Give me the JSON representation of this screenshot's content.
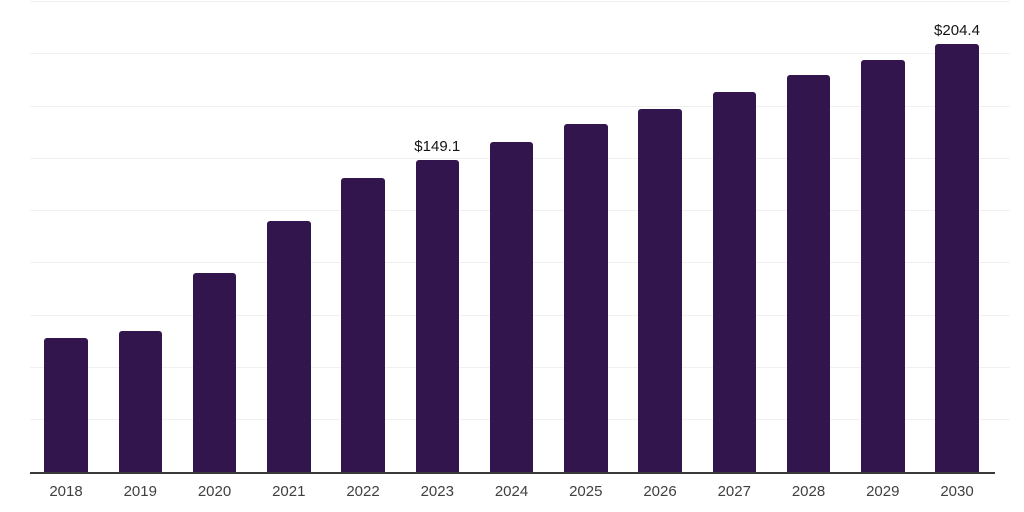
{
  "chart_data": {
    "type": "bar",
    "title": "",
    "xlabel": "",
    "ylabel": "",
    "categories": [
      "2018",
      "2019",
      "2020",
      "2021",
      "2022",
      "2023",
      "2024",
      "2025",
      "2026",
      "2027",
      "2028",
      "2029",
      "2030"
    ],
    "values": [
      63.7,
      67.4,
      95.0,
      119.8,
      140.5,
      149.1,
      157.5,
      166.3,
      173.4,
      181.6,
      189.6,
      196.8,
      204.4
    ],
    "point_labels": {
      "2023": "$149.1",
      "2030": "$204.4"
    },
    "ylim": [
      0,
      225
    ],
    "gridline_step": 25,
    "grid": "horizontal",
    "y_tick_labels_shown": false,
    "legend_position": "none",
    "colors": {
      "bar": "#33154E",
      "gridline": "#F0F0F1",
      "axis_line": "#3A3A3A",
      "tick_label": "#404040",
      "value_label": "#141414",
      "background": "#FFFFFF"
    }
  }
}
